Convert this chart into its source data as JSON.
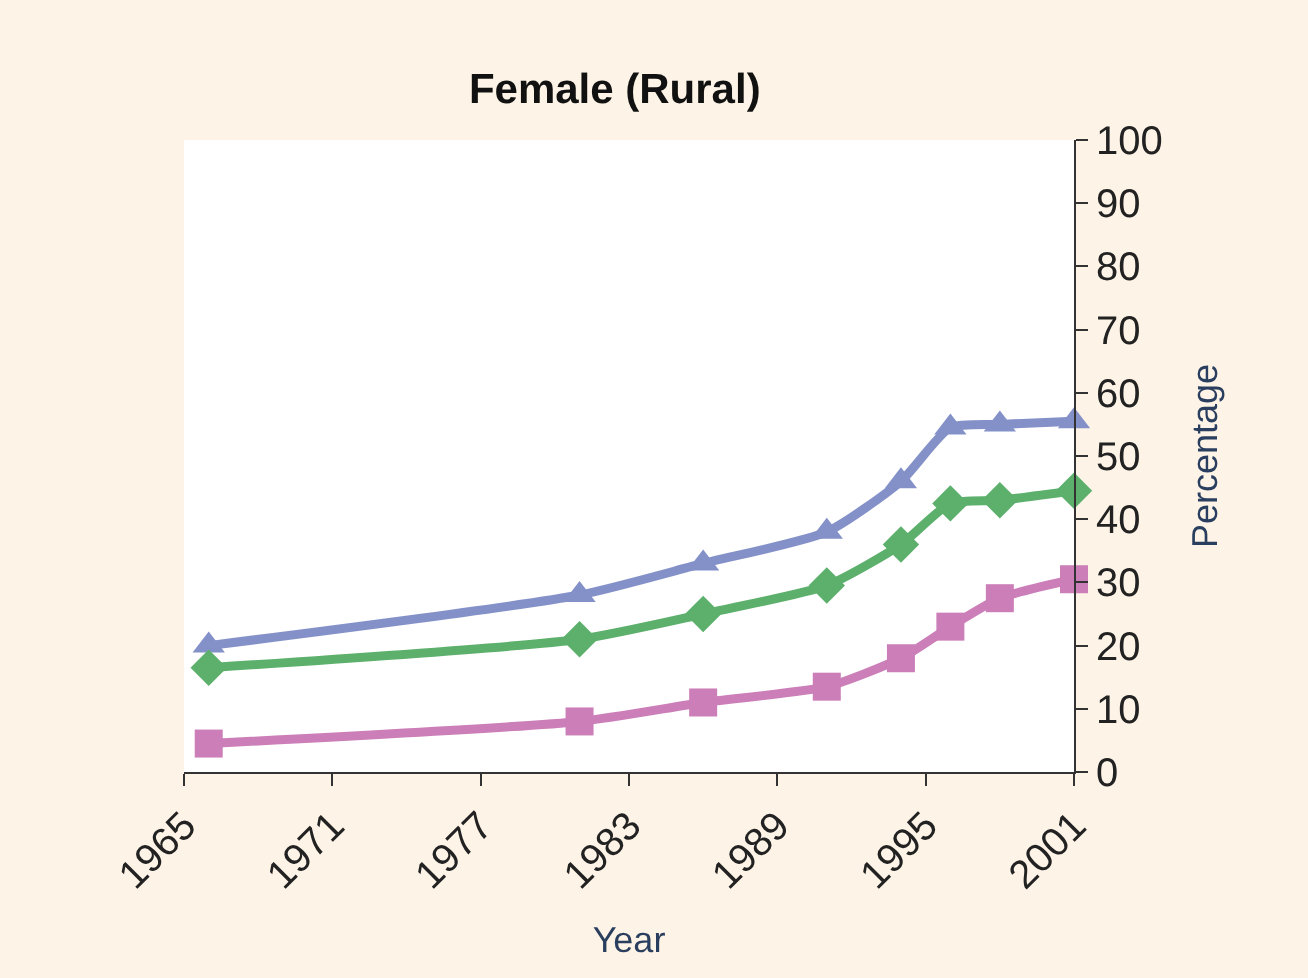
{
  "chart_data": {
    "type": "line",
    "title": "Female (Rural)",
    "xlabel": "Year",
    "ylabel": "Percentage",
    "x": [
      1966,
      1981,
      1986,
      1991,
      1994,
      1996,
      1998,
      2001
    ],
    "series": [
      {
        "color": "#8491c8",
        "marker": "triangle",
        "values": [
          20,
          28,
          33,
          38,
          46,
          54.5,
          55,
          55.5
        ]
      },
      {
        "color": "#5cb06c",
        "marker": "diamond",
        "values": [
          16.5,
          21,
          25,
          29.5,
          36,
          42.5,
          43,
          44.5
        ]
      },
      {
        "color": "#cb7eb8",
        "marker": "square",
        "values": [
          4.5,
          8,
          11,
          13.5,
          18,
          23,
          27.5,
          30.5
        ]
      }
    ],
    "xlim": [
      1965,
      2001
    ],
    "xticks": [
      1965,
      1971,
      1977,
      1983,
      1989,
      1995,
      2001
    ],
    "ylim": [
      0,
      100
    ],
    "yticks": [
      0,
      10,
      20,
      30,
      40,
      50,
      60,
      70,
      80,
      90,
      100
    ]
  }
}
